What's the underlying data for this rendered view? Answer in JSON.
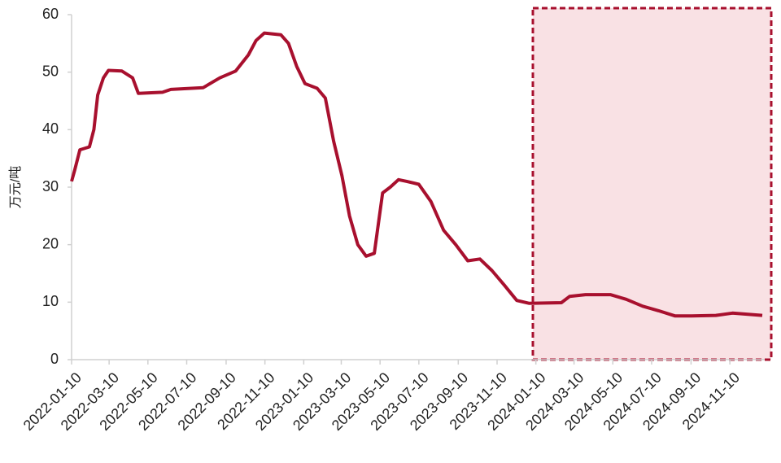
{
  "chart_data": {
    "type": "line",
    "y_label": "万元/吨",
    "x": [
      "2022-01-10",
      "2022-01-15",
      "2022-01-23",
      "2022-02-07",
      "2022-02-14",
      "2022-02-20",
      "2022-03-01",
      "2022-03-09",
      "2022-03-30",
      "2022-04-16",
      "2022-04-25",
      "2022-06-02",
      "2022-06-15",
      "2022-08-05",
      "2022-08-31",
      "2022-09-25",
      "2022-10-15",
      "2022-10-27",
      "2022-11-09",
      "2022-12-05",
      "2022-12-17",
      "2022-12-30",
      "2023-01-12",
      "2023-01-31",
      "2023-02-13",
      "2023-02-26",
      "2023-03-11",
      "2023-03-23",
      "2023-04-05",
      "2023-04-18",
      "2023-05-01",
      "2023-05-14",
      "2023-05-26",
      "2023-06-08",
      "2023-06-21",
      "2023-07-10",
      "2023-07-29",
      "2023-08-18",
      "2023-09-06",
      "2023-09-25",
      "2023-10-14",
      "2023-11-02",
      "2023-11-21",
      "2023-12-11",
      "2023-12-30",
      "2024-02-19",
      "2024-03-03",
      "2024-03-28",
      "2024-05-06",
      "2024-05-31",
      "2024-06-26",
      "2024-07-21",
      "2024-08-16",
      "2024-09-11",
      "2024-10-19",
      "2024-11-14",
      "2024-12-31"
    ],
    "series": [
      {
        "color": "#a8102e",
        "values": [
          31,
          33,
          36.5,
          37,
          40,
          46,
          49,
          50.3,
          50.2,
          49,
          46.3,
          46.5,
          47,
          47.3,
          49,
          50.2,
          53,
          55.5,
          56.8,
          56.5,
          55,
          51,
          48,
          47.2,
          45.5,
          38,
          32,
          25,
          20,
          18,
          18.5,
          29,
          30,
          31.3,
          31,
          30.5,
          27.5,
          22.5,
          20,
          17.2,
          17.5,
          15.5,
          13,
          10.3,
          9.8,
          9.9,
          11,
          11.3,
          11.3,
          10.5,
          9.3,
          8.5,
          7.6,
          7.6,
          7.7,
          8.1,
          7.7
        ]
      }
    ],
    "xlim": [
      "2022-01-10",
      "2024-12-31"
    ],
    "xticks": [
      "2022-01-10",
      "2022-03-10",
      "2022-05-10",
      "2022-07-10",
      "2022-09-10",
      "2022-11-10",
      "2023-01-10",
      "2023-03-10",
      "2023-05-10",
      "2023-07-10",
      "2023-09-10",
      "2023-11-10",
      "2024-01-10",
      "2024-03-10",
      "2024-05-10",
      "2024-07-10",
      "2024-09-10",
      "2024-11-10"
    ],
    "ylim": [
      0,
      60
    ],
    "yticks": [
      0,
      10,
      20,
      30,
      40,
      50,
      60
    ],
    "grid": false
  }
}
